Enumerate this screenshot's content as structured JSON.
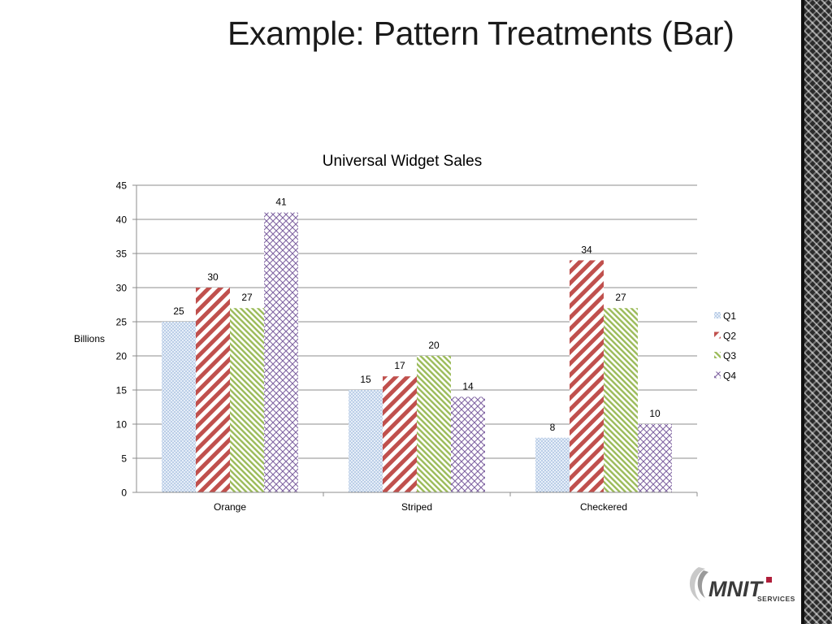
{
  "slide": {
    "title": "Example: Pattern Treatments (Bar)"
  },
  "logo": {
    "name": "MNIT",
    "tagline": "SERVICES"
  },
  "colors": {
    "axis": "#8c8c8c",
    "grid": "#8c8c8c",
    "border": "#2b2b2b"
  },
  "chart_data": {
    "type": "bar",
    "title": "Universal Widget Sales",
    "xlabel": "",
    "ylabel": "Billions",
    "categories": [
      "Orange",
      "Striped",
      "Checkered"
    ],
    "ylim": [
      0,
      45
    ],
    "yticks": [
      0,
      5,
      10,
      15,
      20,
      25,
      30,
      35,
      40,
      45
    ],
    "grid": true,
    "legend_position": "right",
    "series": [
      {
        "name": "Q1",
        "values": [
          25,
          15,
          8
        ],
        "color": "#6f97c9",
        "pattern": "dots"
      },
      {
        "name": "Q2",
        "values": [
          30,
          17,
          34
        ],
        "color": "#c0504d",
        "pattern": "wide-diagonal"
      },
      {
        "name": "Q3",
        "values": [
          27,
          20,
          27
        ],
        "color": "#9bbb59",
        "pattern": "diagonal-reverse"
      },
      {
        "name": "Q4",
        "values": [
          41,
          14,
          10
        ],
        "color": "#8064a2",
        "pattern": "crosshatch"
      }
    ]
  }
}
